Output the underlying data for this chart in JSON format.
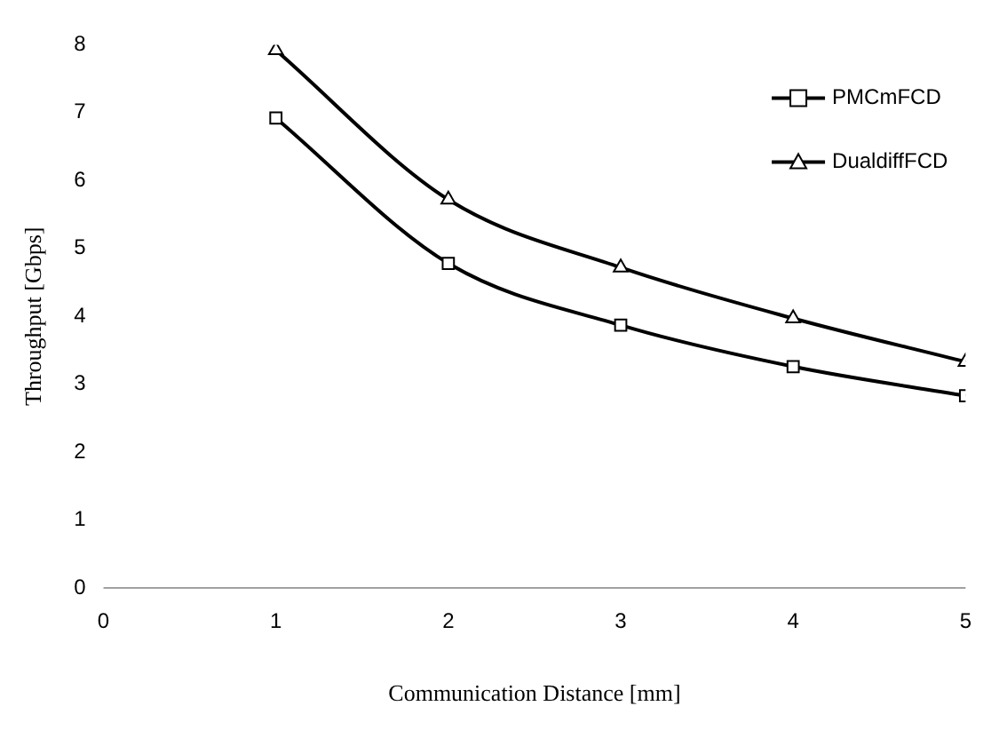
{
  "chart_data": {
    "type": "line",
    "xlabel": "Communication Distance [mm]",
    "ylabel": "Throughput [Gbps]",
    "x": [
      1,
      2,
      3,
      4,
      5
    ],
    "series": [
      {
        "name": "PMCmFCD",
        "color": "#000000",
        "marker": "square",
        "values": [
          6.92,
          4.78,
          3.87,
          3.26,
          2.83
        ]
      },
      {
        "name": "DualdiffFCD",
        "color": "#000000",
        "marker": "triangle",
        "values": [
          7.92,
          5.72,
          4.72,
          3.97,
          3.33
        ]
      }
    ],
    "xlim": [
      0,
      5
    ],
    "xticks": [
      0,
      1,
      2,
      3,
      4,
      5
    ],
    "ylim": [
      0,
      8
    ],
    "yticks": [
      0,
      1,
      2,
      3,
      4,
      5,
      6,
      7,
      8
    ],
    "grid": false,
    "legend": "top right",
    "line_style": "solid"
  }
}
